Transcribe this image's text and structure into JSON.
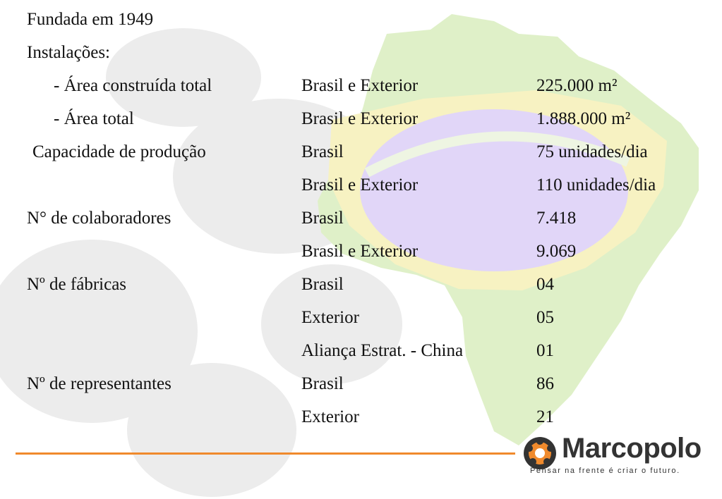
{
  "lines": [
    {
      "label": "Fundada em 1949"
    },
    {
      "label": "Instalações:"
    },
    {
      "label": "- Área construída total",
      "region": "Brasil e Exterior",
      "value": "225.000 m²"
    },
    {
      "label": "- Área total",
      "region": "Brasil e Exterior",
      "value": "1.888.000 m²"
    },
    {
      "label": "Capacidade de produção",
      "region": "Brasil",
      "value": "75 unidades/dia"
    },
    {
      "label": "",
      "region": "Brasil e Exterior",
      "value": "110 unidades/dia"
    },
    {
      "label": "N° de colaboradores",
      "region": "Brasil",
      "value": "7.418"
    },
    {
      "label": "",
      "region": "Brasil e Exterior",
      "value": "9.069"
    },
    {
      "label": "Nº de fábricas",
      "region": "Brasil",
      "value": "04"
    },
    {
      "label": "",
      "region": "Exterior",
      "value": "05"
    },
    {
      "label": "",
      "region": "Aliança Estrat. - China",
      "value": "01"
    },
    {
      "label": "Nº de representantes",
      "region": "Brasil",
      "value": "86"
    },
    {
      "label": "",
      "region": "Exterior",
      "value": "21"
    }
  ],
  "logo": {
    "name": "Marcopolo",
    "tagline": "Pensar na frente é criar o futuro."
  },
  "colors": {
    "accent_orange": "#f08a2c",
    "map_green": "#dff0c8",
    "map_yellow": "#f7f2c2",
    "map_blue": "#e1d6f8",
    "watermark_gray": "#ececec"
  }
}
